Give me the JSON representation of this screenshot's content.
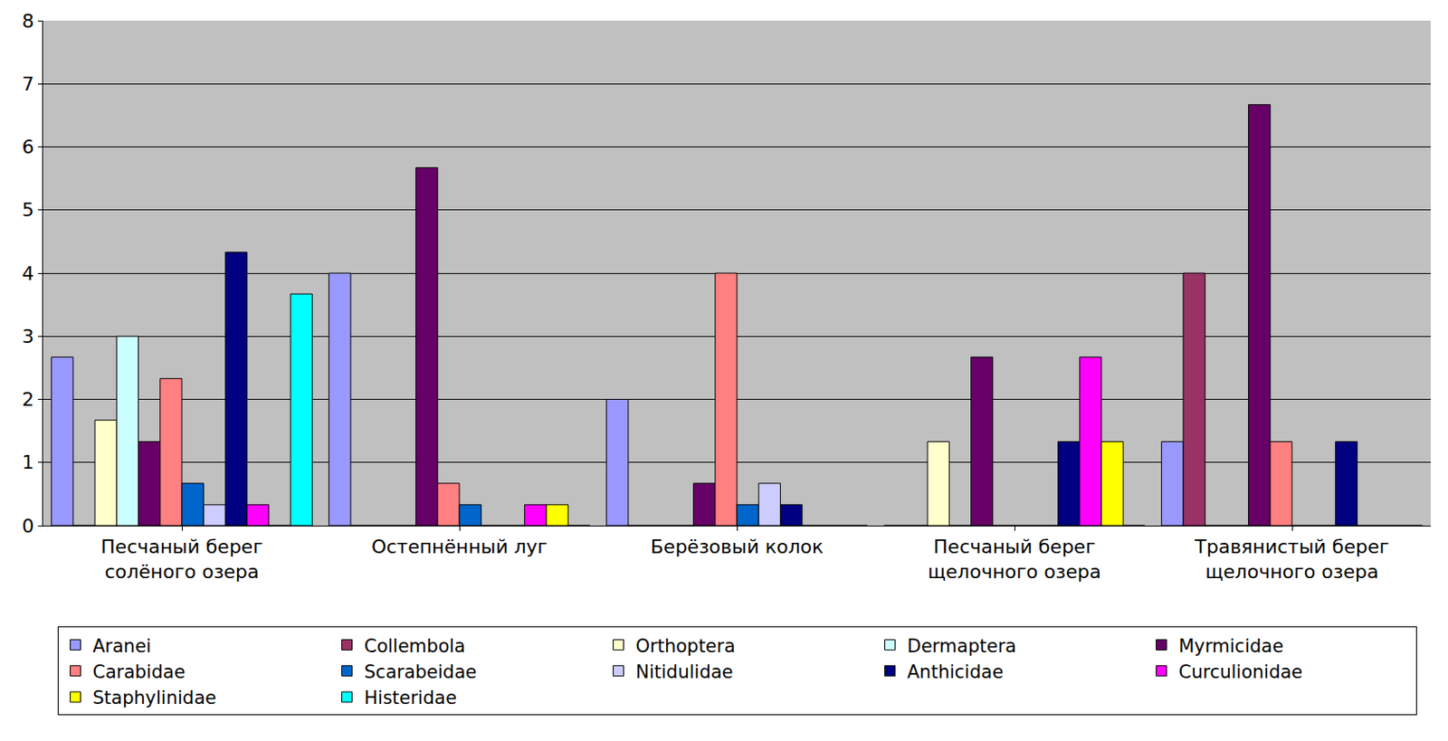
{
  "chart_data": {
    "type": "bar",
    "categories": [
      "Песчаный берег солёного озера",
      "Остепнённый луг",
      "Берёзовый колок",
      "Песчаный берег щелочного озера",
      "Травянистый берег щелочного озера"
    ],
    "series": [
      {
        "name": "Aranei",
        "color": "#9999ff",
        "values": [
          2.67,
          4,
          2,
          0,
          1.33
        ]
      },
      {
        "name": "Collembola",
        "color": "#993366",
        "values": [
          0,
          0,
          0,
          0,
          4
        ]
      },
      {
        "name": "Orthoptera",
        "color": "#ffffcc",
        "values": [
          1.67,
          0,
          0,
          1.33,
          0
        ]
      },
      {
        "name": "Dermaptera",
        "color": "#ccffff",
        "values": [
          3,
          0,
          0,
          0,
          0
        ]
      },
      {
        "name": "Myrmicidae",
        "color": "#660066",
        "values": [
          1.33,
          5.67,
          0.67,
          2.67,
          6.67
        ]
      },
      {
        "name": "Carabidae",
        "color": "#ff8080",
        "values": [
          2.33,
          0.67,
          4,
          0,
          1.33
        ]
      },
      {
        "name": "Scarabeidae",
        "color": "#0066cc",
        "values": [
          0.67,
          0.33,
          0.33,
          0,
          0
        ]
      },
      {
        "name": "Nitidulidae",
        "color": "#ccccff",
        "values": [
          0.33,
          0,
          0.67,
          0,
          0
        ]
      },
      {
        "name": "Anthicidae",
        "color": "#000080",
        "values": [
          4.33,
          0,
          0.33,
          1.33,
          1.33
        ]
      },
      {
        "name": "Curculionidae",
        "color": "#ff00ff",
        "values": [
          0.33,
          0.33,
          0,
          2.67,
          0
        ]
      },
      {
        "name": "Staphylinidae",
        "color": "#ffff00",
        "values": [
          0,
          0.33,
          0,
          1.33,
          0
        ]
      },
      {
        "name": "Histeridae",
        "color": "#00ffff",
        "values": [
          3.67,
          0,
          0,
          0,
          0
        ]
      }
    ],
    "ylim": [
      0,
      8
    ],
    "yticks": [
      0,
      1,
      2,
      3,
      4,
      5,
      6,
      7,
      8
    ],
    "grid": true,
    "legend": "bottom"
  }
}
